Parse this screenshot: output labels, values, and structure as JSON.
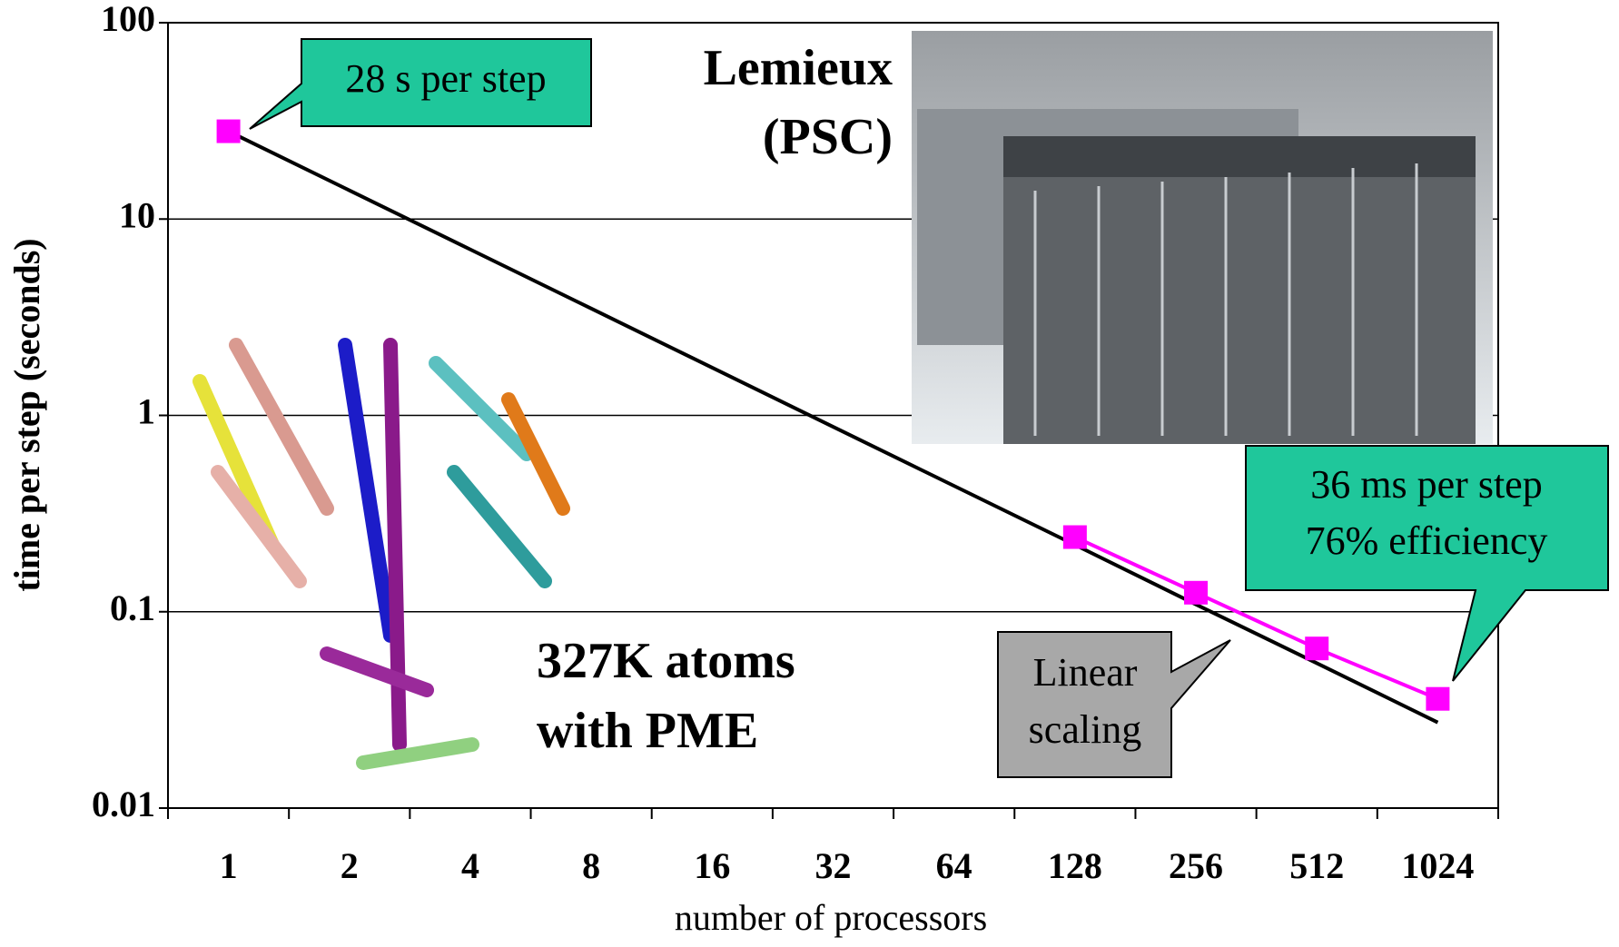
{
  "chart_data": {
    "type": "line",
    "log_y": true,
    "grid": true,
    "x_label": "number of processors",
    "y_label": "time per step (seconds)",
    "categories": [
      "1",
      "2",
      "4",
      "8",
      "16",
      "32",
      "64",
      "128",
      "256",
      "512",
      "1024"
    ],
    "series": [
      {
        "color": "#000000",
        "values": [
          28,
          14,
          7,
          3.5,
          1.75,
          0.875,
          0.4375,
          0.219,
          0.109,
          0.0547,
          0.0273
        ]
      },
      {
        "color": "#ff00ff",
        "values": [
          28,
          null,
          null,
          null,
          null,
          null,
          null,
          0.24,
          0.125,
          0.065,
          0.036
        ]
      }
    ],
    "ylim": [
      0.01,
      100
    ],
    "yticks": [
      0.01,
      0.1,
      1,
      10,
      100
    ],
    "annotations": {
      "first_step": "28 s per step",
      "machine": [
        "Lemieux",
        "(PSC)"
      ],
      "system": [
        "327K atoms",
        "with PME"
      ],
      "last_step": [
        "36 ms per step",
        "76% efficiency"
      ],
      "linear": [
        "Linear",
        "scaling"
      ]
    }
  }
}
